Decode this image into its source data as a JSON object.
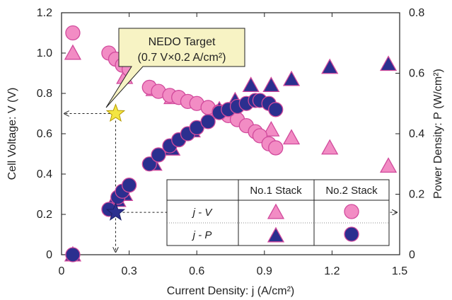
{
  "chart_data": {
    "type": "scatter",
    "xlabel": "Current Density: j (A/cm²)",
    "ylabel": "Cell Voltage: V (V)",
    "y2label": "Power Density: P (W/cm²)",
    "xlim": [
      0,
      1.5
    ],
    "ylim": [
      0,
      1.2
    ],
    "y2lim": [
      0,
      0.8
    ],
    "xticks": [
      "0",
      "0.3",
      "0.6",
      "0.9",
      "1.2",
      "1.5"
    ],
    "yticks": [
      "0",
      "0.2",
      "0.4",
      "0.6",
      "0.8",
      "1.0",
      "1.2"
    ],
    "y2ticks": [
      "0",
      "0.2",
      "0.4",
      "0.6",
      "0.8"
    ],
    "grid": false,
    "annotation": {
      "title": "NEDO Target",
      "text": "(0.7 V×0.2 A/cm²)",
      "target_j": 0.24,
      "target_v": 0.7,
      "target_p": 0.14
    },
    "legend": {
      "placement": "bottom-right",
      "headers": [
        "No.1 Stack",
        "No.2 Stack"
      ],
      "rows": [
        "j - V",
        "j - P"
      ]
    },
    "colors": {
      "pink": "#f28cc4",
      "navy": "#2b2f8f",
      "edge_pink": "#d14a9c",
      "star": "#f4e542"
    },
    "series": [
      {
        "name": "No.1 Stack j - V",
        "marker": "triangle",
        "fill": "pink",
        "axis": "left",
        "x": [
          0.05,
          0.28,
          0.41,
          0.49,
          0.7,
          0.93,
          1.02,
          1.19,
          1.45
        ],
        "y": [
          1.0,
          0.88,
          0.82,
          0.78,
          0.71,
          0.62,
          0.58,
          0.53,
          0.44
        ]
      },
      {
        "name": "No.2 Stack j - V",
        "marker": "circle",
        "fill": "pink",
        "axis": "left",
        "x": [
          0.05,
          0.21,
          0.24,
          0.27,
          0.3,
          0.39,
          0.43,
          0.48,
          0.52,
          0.56,
          0.6,
          0.65,
          0.7,
          0.74,
          0.78,
          0.82,
          0.86,
          0.88,
          0.92,
          0.95
        ],
        "y": [
          1.1,
          1.0,
          0.97,
          0.94,
          0.92,
          0.83,
          0.81,
          0.79,
          0.78,
          0.76,
          0.75,
          0.73,
          0.71,
          0.69,
          0.67,
          0.64,
          0.61,
          0.59,
          0.55,
          0.53
        ]
      },
      {
        "name": "No.1 Stack j - P",
        "marker": "triangle",
        "fill": "navy",
        "axis": "right",
        "x": [
          0.05,
          0.22,
          0.25,
          0.28,
          0.41,
          0.49,
          0.58,
          0.7,
          0.77,
          0.84,
          0.93,
          1.02,
          1.19,
          1.45
        ],
        "y": [
          0.0,
          0.16,
          0.18,
          0.2,
          0.3,
          0.35,
          0.41,
          0.48,
          0.51,
          0.56,
          0.56,
          0.58,
          0.62,
          0.63
        ]
      },
      {
        "name": "No.2 Stack j - P",
        "marker": "circle",
        "fill": "navy",
        "axis": "right",
        "x": [
          0.05,
          0.21,
          0.25,
          0.27,
          0.3,
          0.39,
          0.43,
          0.48,
          0.52,
          0.56,
          0.6,
          0.65,
          0.7,
          0.74,
          0.78,
          0.82,
          0.86,
          0.88,
          0.92,
          0.95
        ],
        "y": [
          0.0,
          0.15,
          0.19,
          0.21,
          0.23,
          0.3,
          0.33,
          0.36,
          0.38,
          0.4,
          0.42,
          0.44,
          0.47,
          0.48,
          0.49,
          0.5,
          0.51,
          0.51,
          0.5,
          0.48
        ]
      }
    ]
  }
}
